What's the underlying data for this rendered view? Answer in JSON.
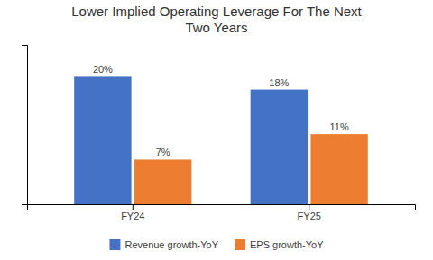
{
  "chart_data": {
    "type": "bar",
    "title": "Lower Implied Operating Leverage For The Next\nTwo Years",
    "categories": [
      "FY24",
      "FY25"
    ],
    "series": [
      {
        "name": "Revenue growth-YoY",
        "color": "#4472C4",
        "values": [
          20,
          18
        ],
        "value_labels": [
          "20%",
          "18%"
        ]
      },
      {
        "name": "EPS growth-YoY",
        "color": "#ED7D31",
        "values": [
          7,
          11
        ],
        "value_labels": [
          "7%",
          "11%"
        ]
      }
    ],
    "ylim": [
      0,
      25
    ],
    "grid": false,
    "tick_labels": "x",
    "data_labels": true,
    "legend": "bottom"
  }
}
